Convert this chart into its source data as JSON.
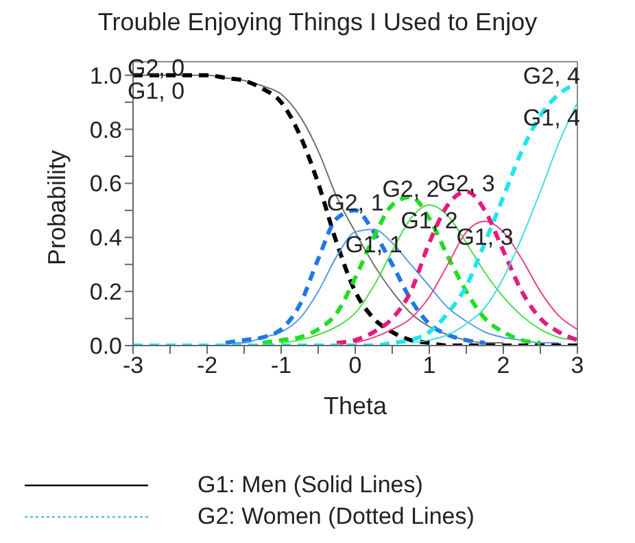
{
  "chart_data": {
    "type": "line",
    "title": "Trouble Enjoying Things I Used to Enjoy",
    "xlabel": "Theta",
    "ylabel": "Probability",
    "x": [
      -3,
      -2.75,
      -2.5,
      -2.25,
      -2,
      -1.75,
      -1.5,
      -1.25,
      -1,
      -0.75,
      -0.5,
      -0.25,
      0,
      0.25,
      0.5,
      0.75,
      1,
      1.25,
      1.5,
      1.75,
      2,
      2.25,
      2.5,
      2.75,
      3
    ],
    "series": [
      {
        "name": "G1, 0",
        "color": "#707070",
        "line_style": "solid",
        "values": [
          1,
          1,
          1,
          1,
          1,
          0.99,
          0.98,
          0.96,
          0.93,
          0.85,
          0.72,
          0.55,
          0.42,
          0.3,
          0.2,
          0.12,
          0.07,
          0.04,
          0.02,
          0.01,
          0.01,
          null,
          null,
          null,
          null
        ]
      },
      {
        "name": "G2, 0",
        "color": "#000000",
        "line_style": "dashed",
        "values": [
          1,
          1,
          1,
          1,
          1,
          0.99,
          0.98,
          0.95,
          0.9,
          0.78,
          0.6,
          0.38,
          0.2,
          0.1,
          0.05,
          0.02,
          0.01,
          0,
          0,
          0,
          0,
          0,
          0,
          0,
          0
        ]
      },
      {
        "name": "G1, 1",
        "color": "#5a9ae6",
        "line_style": "solid",
        "values": [
          null,
          null,
          null,
          null,
          null,
          0.01,
          0.01,
          0.03,
          0.05,
          0.1,
          0.2,
          0.33,
          0.42,
          0.43,
          0.38,
          0.3,
          0.22,
          0.14,
          0.09,
          0.05,
          0.03,
          0.02,
          0.01,
          0.01,
          null
        ]
      },
      {
        "name": "G2, 1",
        "color": "#1e78e8",
        "line_style": "dashed",
        "values": [
          null,
          null,
          null,
          null,
          null,
          0.01,
          0.02,
          0.03,
          0.06,
          0.15,
          0.32,
          0.47,
          0.5,
          0.42,
          0.3,
          0.17,
          0.08,
          0.04,
          0.02,
          0.01,
          null,
          null,
          null,
          null,
          null
        ]
      },
      {
        "name": "G1, 2",
        "color": "#4ade4a",
        "line_style": "solid",
        "values": [
          null,
          null,
          null,
          null,
          null,
          null,
          null,
          null,
          0.01,
          0.02,
          0.04,
          0.07,
          0.12,
          0.22,
          0.35,
          0.47,
          0.52,
          0.48,
          0.38,
          0.27,
          0.18,
          0.11,
          0.06,
          0.03,
          0.02
        ]
      },
      {
        "name": "G2, 2",
        "color": "#22dd22",
        "line_style": "dashed",
        "values": [
          null,
          null,
          null,
          null,
          null,
          null,
          null,
          0.01,
          0.02,
          0.03,
          0.06,
          0.12,
          0.25,
          0.4,
          0.52,
          0.55,
          0.47,
          0.33,
          0.2,
          0.1,
          0.05,
          0.02,
          0.01,
          null,
          null
        ]
      },
      {
        "name": "G1, 3",
        "color": "#e8408a",
        "line_style": "solid",
        "values": [
          null,
          null,
          null,
          null,
          null,
          null,
          null,
          null,
          null,
          null,
          null,
          null,
          0.01,
          0.03,
          0.06,
          0.1,
          0.18,
          0.3,
          0.42,
          0.46,
          0.42,
          0.32,
          0.2,
          0.11,
          0.06
        ]
      },
      {
        "name": "G2, 3",
        "color": "#e8197a",
        "line_style": "dashed",
        "values": [
          null,
          null,
          null,
          null,
          null,
          null,
          null,
          null,
          null,
          null,
          null,
          0.01,
          0.02,
          0.05,
          0.1,
          0.2,
          0.38,
          0.52,
          0.57,
          0.5,
          0.35,
          0.2,
          0.1,
          0.05,
          0.02
        ]
      },
      {
        "name": "G1, 4",
        "color": "#40dde0",
        "line_style": "solid",
        "values": [
          null,
          null,
          null,
          null,
          null,
          null,
          null,
          null,
          null,
          null,
          null,
          null,
          null,
          null,
          null,
          0.01,
          0.02,
          0.04,
          0.08,
          0.14,
          0.25,
          0.4,
          0.57,
          0.75,
          0.9
        ]
      },
      {
        "name": "G2, 4",
        "color": "#1ee6ee",
        "line_style": "dashed",
        "values": [
          0,
          0,
          0,
          0,
          0,
          0,
          0,
          0,
          0,
          0,
          0,
          0,
          0,
          0,
          0.01,
          0.02,
          0.05,
          0.12,
          0.22,
          0.38,
          0.55,
          0.72,
          0.85,
          0.93,
          0.97
        ]
      }
    ],
    "xlim": [
      -3,
      3
    ],
    "xticks": [
      -3,
      {
        "value": -2.5,
        "label": null
      },
      -2,
      {
        "value": -1.5,
        "label": null
      },
      -1,
      {
        "value": -0.5,
        "label": null
      },
      0,
      {
        "value": 0.5,
        "label": null
      },
      1,
      {
        "value": 1.5,
        "label": null
      },
      2,
      {
        "value": 2.5,
        "label": null
      },
      3
    ],
    "ylim": [
      0,
      1.05
    ],
    "yticks": [
      {
        "value": 0,
        "label": "0.0"
      },
      {
        "value": 0.1,
        "label": null
      },
      {
        "value": 0.2,
        "label": "0.2"
      },
      {
        "value": 0.3,
        "label": null
      },
      {
        "value": 0.4,
        "label": "0.4"
      },
      {
        "value": 0.5,
        "label": null
      },
      {
        "value": 0.6,
        "label": "0.6"
      },
      {
        "value": 0.7,
        "label": null
      },
      {
        "value": 0.8,
        "label": "0.8"
      },
      {
        "value": 0.9,
        "label": null
      },
      {
        "value": 1,
        "label": "1.0"
      }
    ],
    "grid": false,
    "legend": false,
    "marker": "none",
    "annotations": [
      "G1: Men (Solid Lines)",
      "G2: Women (Dotted Lines)"
    ]
  }
}
